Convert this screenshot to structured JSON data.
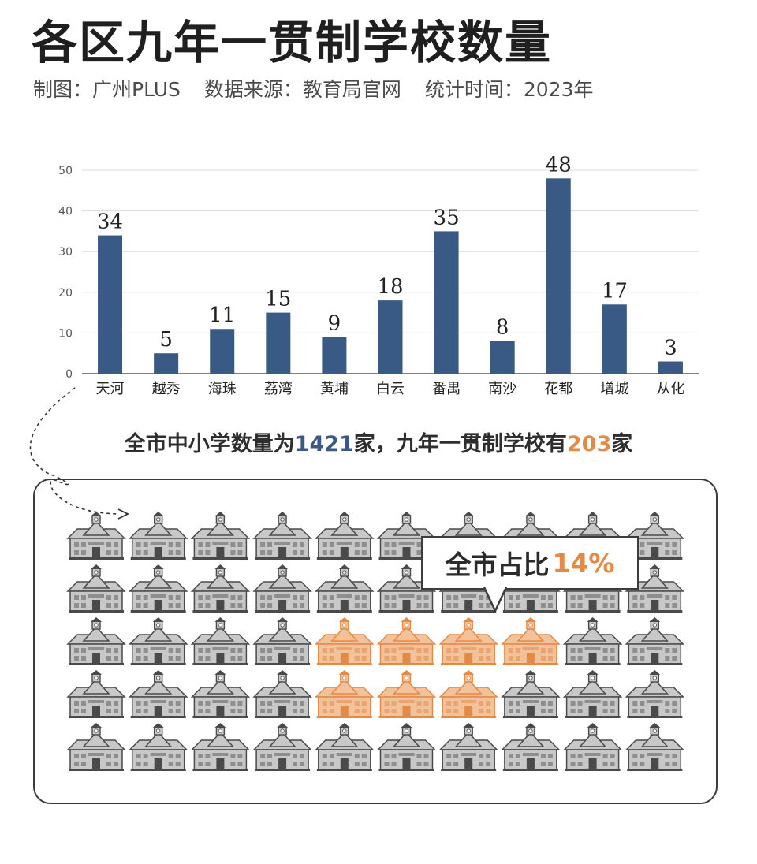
{
  "header": {
    "title": "各区九年一贯制学校数量",
    "credit": "制图：广州PLUS",
    "source": "数据来源：教育局官网",
    "period": "统计时间：2023年"
  },
  "chart_data": {
    "type": "bar",
    "categories": [
      "天河",
      "越秀",
      "海珠",
      "荔湾",
      "黄埔",
      "白云",
      "番禺",
      "南沙",
      "花都",
      "增城",
      "从化"
    ],
    "values": [
      34,
      5,
      11,
      15,
      9,
      18,
      35,
      8,
      48,
      17,
      3
    ],
    "ylim": [
      0,
      50
    ],
    "yticks": [
      0,
      10,
      20,
      30,
      40,
      50
    ],
    "grid": true,
    "bar_color": "#3a5a86",
    "title": "",
    "xlabel": "",
    "ylabel": ""
  },
  "summary": {
    "prefix": "全市中小学数量为",
    "total": "1421",
    "middle": "家，九年一贯制学校有",
    "nine_year": "203",
    "suffix": "家"
  },
  "callout": {
    "label": "全市占比",
    "percent": "14%"
  },
  "icon_grid": {
    "icon": "school-building-icon",
    "rows": 5,
    "cols": 10,
    "highlighted": [
      [
        2,
        4
      ],
      [
        2,
        5
      ],
      [
        2,
        6
      ],
      [
        2,
        7
      ],
      [
        3,
        4
      ],
      [
        3,
        5
      ],
      [
        3,
        6
      ]
    ],
    "colors": {
      "normal": "#c8c8c8",
      "highlight": "#f2c29b",
      "accent": "#e38a47",
      "outline": "#4a4a4a"
    }
  }
}
